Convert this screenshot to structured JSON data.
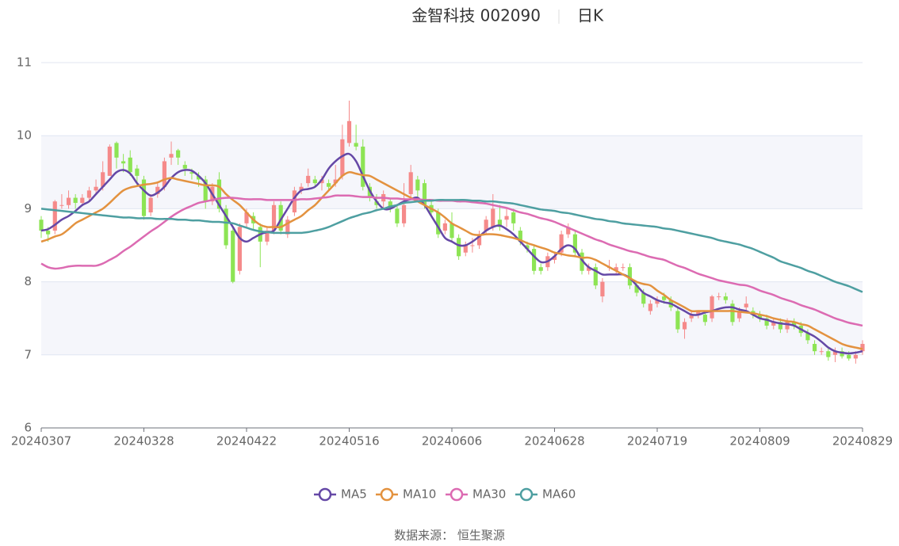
{
  "chart_data": {
    "type": "candlestick",
    "title": "金智科技 002090",
    "subtitle": "日K",
    "source": "数据来源： 恒生聚源",
    "ylim": [
      6,
      11
    ],
    "yticks": [
      6,
      7,
      8,
      9,
      10,
      11
    ],
    "grid": true,
    "legend": "bottom",
    "up_color": "#f58a8a",
    "down_color": "#8de454",
    "categories": [
      "20240307",
      null,
      null,
      null,
      null,
      null,
      null,
      null,
      null,
      null,
      null,
      null,
      null,
      null,
      null,
      "20240328",
      null,
      null,
      null,
      null,
      null,
      null,
      null,
      null,
      null,
      null,
      null,
      null,
      null,
      null,
      "20240422",
      null,
      null,
      null,
      null,
      null,
      null,
      null,
      null,
      null,
      null,
      null,
      null,
      null,
      null,
      "20240516",
      null,
      null,
      null,
      null,
      null,
      null,
      null,
      null,
      null,
      null,
      null,
      null,
      null,
      null,
      "20240606",
      null,
      null,
      null,
      null,
      null,
      null,
      null,
      null,
      null,
      null,
      null,
      null,
      null,
      null,
      "20240628",
      null,
      null,
      null,
      null,
      null,
      null,
      null,
      null,
      null,
      null,
      null,
      null,
      null,
      null,
      "20240719",
      null,
      null,
      null,
      null,
      null,
      null,
      null,
      null,
      null,
      null,
      null,
      null,
      null,
      null,
      "20240809",
      null,
      null,
      null,
      null,
      null,
      null,
      null,
      null,
      null,
      null,
      null,
      null,
      null,
      null,
      "20240829"
    ],
    "ohlc": [
      [
        8.85,
        8.7,
        8.6,
        8.9
      ],
      [
        8.7,
        8.65,
        8.55,
        8.75
      ],
      [
        8.7,
        9.1,
        8.65,
        9.12
      ],
      [
        9.05,
        9.05,
        9.0,
        9.2
      ],
      [
        9.05,
        9.15,
        9.0,
        9.25
      ],
      [
        9.15,
        9.08,
        9.0,
        9.2
      ],
      [
        9.08,
        9.15,
        9.05,
        9.2
      ],
      [
        9.15,
        9.25,
        9.1,
        9.3
      ],
      [
        9.25,
        9.3,
        9.2,
        9.4
      ],
      [
        9.3,
        9.5,
        9.25,
        9.65
      ],
      [
        9.45,
        9.85,
        9.45,
        9.88
      ],
      [
        9.9,
        9.7,
        9.55,
        9.92
      ],
      [
        9.65,
        9.62,
        9.5,
        9.75
      ],
      [
        9.7,
        9.5,
        9.45,
        9.8
      ],
      [
        9.55,
        9.45,
        9.3,
        9.6
      ],
      [
        9.4,
        8.9,
        8.85,
        9.45
      ],
      [
        8.95,
        9.15,
        8.9,
        9.2
      ],
      [
        9.2,
        9.3,
        9.15,
        9.35
      ],
      [
        9.3,
        9.65,
        9.25,
        9.7
      ],
      [
        9.7,
        9.75,
        9.6,
        9.92
      ],
      [
        9.8,
        9.7,
        9.6,
        9.82
      ],
      [
        9.6,
        9.55,
        9.45,
        9.65
      ],
      [
        9.5,
        9.48,
        9.4,
        9.55
      ],
      [
        9.45,
        9.4,
        9.3,
        9.5
      ],
      [
        9.4,
        9.1,
        9.0,
        9.45
      ],
      [
        9.1,
        9.3,
        9.05,
        9.35
      ],
      [
        9.4,
        9.0,
        8.95,
        9.5
      ],
      [
        9.0,
        8.5,
        8.45,
        9.05
      ],
      [
        8.7,
        8.0,
        7.98,
        8.75
      ],
      [
        8.15,
        8.75,
        8.1,
        8.8
      ],
      [
        8.8,
        8.95,
        8.75,
        9.0
      ],
      [
        8.9,
        8.8,
        8.7,
        8.95
      ],
      [
        8.75,
        8.55,
        8.2,
        8.8
      ],
      [
        8.55,
        8.7,
        8.5,
        8.75
      ],
      [
        8.7,
        9.05,
        8.65,
        9.1
      ],
      [
        9.05,
        8.7,
        8.65,
        9.1
      ],
      [
        8.65,
        8.85,
        8.6,
        8.9
      ],
      [
        8.95,
        9.25,
        8.9,
        9.3
      ],
      [
        9.25,
        9.3,
        9.2,
        9.35
      ],
      [
        9.35,
        9.45,
        9.3,
        9.55
      ],
      [
        9.4,
        9.35,
        9.3,
        9.45
      ],
      [
        9.35,
        9.4,
        9.25,
        9.45
      ],
      [
        9.35,
        9.3,
        9.25,
        9.4
      ],
      [
        9.35,
        9.4,
        9.3,
        9.6
      ],
      [
        9.45,
        9.95,
        9.4,
        10.15
      ],
      [
        9.9,
        10.2,
        9.85,
        10.48
      ],
      [
        9.9,
        9.85,
        9.8,
        10.15
      ],
      [
        9.85,
        9.3,
        9.25,
        9.95
      ],
      [
        9.3,
        9.15,
        9.1,
        9.35
      ],
      [
        9.1,
        9.05,
        9.0,
        9.2
      ],
      [
        9.1,
        9.2,
        9.0,
        9.25
      ],
      [
        9.1,
        9.0,
        8.95,
        9.15
      ],
      [
        9.0,
        8.8,
        8.75,
        9.05
      ],
      [
        8.8,
        9.05,
        8.75,
        9.35
      ],
      [
        9.2,
        9.5,
        9.15,
        9.6
      ],
      [
        9.4,
        9.25,
        9.1,
        9.45
      ],
      [
        9.35,
        9.05,
        9.0,
        9.4
      ],
      [
        9.05,
        8.95,
        8.9,
        9.1
      ],
      [
        8.95,
        8.65,
        8.6,
        9.0
      ],
      [
        8.7,
        8.8,
        8.65,
        8.85
      ],
      [
        8.8,
        8.6,
        8.55,
        8.95
      ],
      [
        8.6,
        8.35,
        8.3,
        8.65
      ],
      [
        8.4,
        8.5,
        8.35,
        8.55
      ],
      [
        8.5,
        8.5,
        8.4,
        8.6
      ],
      [
        8.5,
        8.65,
        8.45,
        8.7
      ],
      [
        8.7,
        8.85,
        8.65,
        8.9
      ],
      [
        8.75,
        9.0,
        8.7,
        9.2
      ],
      [
        8.85,
        8.75,
        8.7,
        9.05
      ],
      [
        8.85,
        8.9,
        8.75,
        9.0
      ],
      [
        8.95,
        8.8,
        8.7,
        9.0
      ],
      [
        8.7,
        8.55,
        8.5,
        8.75
      ],
      [
        8.5,
        8.45,
        8.4,
        8.55
      ],
      [
        8.45,
        8.15,
        8.1,
        8.5
      ],
      [
        8.2,
        8.15,
        8.1,
        8.25
      ],
      [
        8.2,
        8.35,
        8.15,
        8.4
      ],
      [
        8.3,
        8.35,
        8.25,
        8.4
      ],
      [
        8.4,
        8.65,
        8.35,
        8.7
      ],
      [
        8.65,
        8.75,
        8.6,
        8.8
      ],
      [
        8.65,
        8.4,
        8.35,
        8.7
      ],
      [
        8.4,
        8.15,
        8.1,
        8.45
      ],
      [
        8.15,
        8.2,
        8.1,
        8.25
      ],
      [
        8.2,
        7.95,
        7.9,
        8.25
      ],
      [
        7.8,
        8.0,
        7.72,
        8.05
      ],
      [
        8.2,
        8.2,
        8.15,
        8.3
      ],
      [
        8.15,
        8.2,
        8.1,
        8.25
      ],
      [
        8.2,
        8.2,
        8.15,
        8.25
      ],
      [
        8.2,
        7.95,
        7.9,
        8.25
      ],
      [
        7.95,
        7.85,
        7.8,
        8.0
      ],
      [
        7.85,
        7.7,
        7.65,
        7.9
      ],
      [
        7.6,
        7.7,
        7.55,
        7.75
      ],
      [
        7.7,
        7.75,
        7.65,
        7.8
      ],
      [
        7.8,
        7.75,
        7.7,
        7.85
      ],
      [
        7.75,
        7.65,
        7.6,
        7.8
      ],
      [
        7.6,
        7.35,
        7.3,
        7.65
      ],
      [
        7.35,
        7.45,
        7.22,
        7.5
      ],
      [
        7.5,
        7.55,
        7.45,
        7.6
      ],
      [
        7.55,
        7.6,
        7.5,
        7.6
      ],
      [
        7.55,
        7.45,
        7.4,
        7.6
      ],
      [
        7.5,
        7.8,
        7.45,
        7.82
      ],
      [
        7.8,
        7.8,
        7.75,
        7.85
      ],
      [
        7.8,
        7.75,
        7.7,
        7.85
      ],
      [
        7.7,
        7.45,
        7.4,
        7.75
      ],
      [
        7.5,
        7.6,
        7.45,
        7.65
      ],
      [
        7.65,
        7.7,
        7.6,
        7.8
      ],
      [
        7.6,
        7.55,
        7.5,
        7.65
      ],
      [
        7.55,
        7.5,
        7.45,
        7.6
      ],
      [
        7.5,
        7.4,
        7.35,
        7.55
      ],
      [
        7.4,
        7.45,
        7.35,
        7.5
      ],
      [
        7.45,
        7.35,
        7.3,
        7.5
      ],
      [
        7.35,
        7.45,
        7.3,
        7.5
      ],
      [
        7.45,
        7.4,
        7.35,
        7.5
      ],
      [
        7.4,
        7.3,
        7.25,
        7.45
      ],
      [
        7.3,
        7.2,
        7.15,
        7.35
      ],
      [
        7.15,
        7.05,
        7.0,
        7.2
      ],
      [
        7.05,
        7.05,
        7.0,
        7.1
      ],
      [
        7.05,
        6.97,
        6.92,
        7.1
      ],
      [
        7.0,
        7.05,
        6.9,
        7.1
      ],
      [
        7.05,
        6.98,
        6.95,
        7.1
      ],
      [
        7.0,
        6.95,
        6.92,
        7.05
      ],
      [
        6.95,
        7.0,
        6.88,
        7.05
      ],
      [
        7.05,
        7.15,
        7.0,
        7.2
      ]
    ],
    "series": [
      {
        "name": "MA5",
        "color": "#6548a6",
        "values": [
          8.7,
          8.72,
          8.78,
          8.85,
          8.9,
          8.97,
          9.05,
          9.1,
          9.2,
          9.3,
          9.4,
          9.5,
          9.53,
          9.48,
          9.35,
          9.25,
          9.18,
          9.22,
          9.3,
          9.42,
          9.5,
          9.53,
          9.52,
          9.45,
          9.35,
          9.2,
          9.05,
          8.9,
          8.75,
          8.6,
          8.55,
          8.6,
          8.65,
          8.68,
          8.7,
          8.85,
          9.0,
          9.15,
          9.25,
          9.27,
          9.3,
          9.4,
          9.55,
          9.65,
          9.72,
          9.75,
          9.65,
          9.45,
          9.25,
          9.1,
          9.0,
          9.0,
          9.05,
          9.1,
          9.13,
          9.15,
          9.05,
          8.9,
          8.75,
          8.6,
          8.55,
          8.5,
          8.5,
          8.55,
          8.62,
          8.7,
          8.75,
          8.77,
          8.72,
          8.65,
          8.55,
          8.45,
          8.35,
          8.27,
          8.28,
          8.35,
          8.45,
          8.5,
          8.45,
          8.3,
          8.2,
          8.15,
          8.1,
          8.1,
          8.1,
          8.1,
          8.05,
          7.95,
          7.85,
          7.8,
          7.75,
          7.72,
          7.7,
          7.65,
          7.6,
          7.55,
          7.55,
          7.58,
          7.6,
          7.63,
          7.65,
          7.65,
          7.62,
          7.6,
          7.55,
          7.5,
          7.48,
          7.45,
          7.43,
          7.42,
          7.4,
          7.35,
          7.3,
          7.25,
          7.18,
          7.1,
          7.05,
          7.03,
          7.02,
          7.03,
          7.05
        ]
      },
      {
        "name": "MA10",
        "color": "#e3923f",
        "values": [
          8.55,
          8.58,
          8.62,
          8.65,
          8.72,
          8.8,
          8.85,
          8.9,
          8.95,
          9.0,
          9.08,
          9.17,
          9.25,
          9.29,
          9.31,
          9.33,
          9.34,
          9.36,
          9.4,
          9.42,
          9.4,
          9.38,
          9.36,
          9.34,
          9.32,
          9.32,
          9.3,
          9.2,
          9.12,
          9.05,
          8.95,
          8.85,
          8.78,
          8.75,
          8.75,
          8.75,
          8.8,
          8.85,
          8.9,
          8.98,
          9.05,
          9.15,
          9.25,
          9.35,
          9.45,
          9.5,
          9.48,
          9.46,
          9.45,
          9.4,
          9.35,
          9.3,
          9.25,
          9.2,
          9.15,
          9.1,
          9.05,
          9.0,
          8.95,
          8.88,
          8.8,
          8.75,
          8.7,
          8.65,
          8.64,
          8.65,
          8.65,
          8.64,
          8.62,
          8.6,
          8.57,
          8.53,
          8.5,
          8.47,
          8.44,
          8.4,
          8.38,
          8.36,
          8.35,
          8.33,
          8.33,
          8.3,
          8.25,
          8.2,
          8.15,
          8.1,
          8.05,
          8.0,
          7.97,
          7.95,
          7.88,
          7.82,
          7.75,
          7.7,
          7.65,
          7.6,
          7.6,
          7.6,
          7.6,
          7.6,
          7.6,
          7.6,
          7.59,
          7.58,
          7.57,
          7.55,
          7.53,
          7.5,
          7.48,
          7.46,
          7.45,
          7.42,
          7.4,
          7.35,
          7.3,
          7.25,
          7.2,
          7.15,
          7.12,
          7.1,
          7.08
        ]
      },
      {
        "name": "MA30",
        "color": "#dc6bb2",
        "values": [
          8.25,
          8.2,
          8.18,
          8.19,
          8.21,
          8.22,
          8.22,
          8.22,
          8.22,
          8.25,
          8.3,
          8.35,
          8.42,
          8.48,
          8.55,
          8.62,
          8.69,
          8.75,
          8.82,
          8.89,
          8.95,
          9.0,
          9.04,
          9.08,
          9.1,
          9.12,
          9.14,
          9.15,
          9.15,
          9.14,
          9.13,
          9.13,
          9.13,
          9.12,
          9.12,
          9.12,
          9.12,
          9.12,
          9.13,
          9.13,
          9.14,
          9.15,
          9.16,
          9.18,
          9.18,
          9.18,
          9.17,
          9.16,
          9.16,
          9.15,
          9.15,
          9.14,
          9.14,
          9.13,
          9.13,
          9.13,
          9.12,
          9.12,
          9.11,
          9.11,
          9.11,
          9.1,
          9.1,
          9.09,
          9.08,
          9.07,
          9.05,
          9.03,
          9.01,
          8.98,
          8.95,
          8.93,
          8.9,
          8.87,
          8.85,
          8.82,
          8.78,
          8.74,
          8.7,
          8.66,
          8.62,
          8.58,
          8.55,
          8.51,
          8.48,
          8.45,
          8.42,
          8.4,
          8.37,
          8.34,
          8.32,
          8.3,
          8.26,
          8.22,
          8.19,
          8.15,
          8.11,
          8.08,
          8.05,
          8.02,
          8.0,
          7.98,
          7.96,
          7.95,
          7.92,
          7.88,
          7.85,
          7.82,
          7.78,
          7.75,
          7.72,
          7.68,
          7.65,
          7.62,
          7.58,
          7.54,
          7.5,
          7.47,
          7.44,
          7.42,
          7.4
        ]
      },
      {
        "name": "MA60",
        "color": "#4e9fa1",
        "values": [
          9.0,
          8.99,
          8.98,
          8.97,
          8.96,
          8.95,
          8.94,
          8.93,
          8.92,
          8.91,
          8.9,
          8.89,
          8.88,
          8.88,
          8.87,
          8.87,
          8.87,
          8.86,
          8.86,
          8.86,
          8.85,
          8.85,
          8.84,
          8.84,
          8.83,
          8.82,
          8.82,
          8.81,
          8.8,
          8.77,
          8.74,
          8.71,
          8.69,
          8.68,
          8.67,
          8.67,
          8.67,
          8.67,
          8.67,
          8.68,
          8.7,
          8.72,
          8.75,
          8.79,
          8.83,
          8.87,
          8.9,
          8.93,
          8.95,
          8.98,
          9.0,
          9.03,
          9.05,
          9.08,
          9.09,
          9.1,
          9.11,
          9.11,
          9.12,
          9.12,
          9.12,
          9.12,
          9.12,
          9.11,
          9.11,
          9.1,
          9.1,
          9.09,
          9.08,
          9.07,
          9.05,
          9.03,
          9.01,
          8.99,
          8.98,
          8.97,
          8.95,
          8.94,
          8.92,
          8.9,
          8.88,
          8.86,
          8.85,
          8.83,
          8.82,
          8.8,
          8.79,
          8.78,
          8.77,
          8.76,
          8.75,
          8.73,
          8.72,
          8.7,
          8.68,
          8.66,
          8.64,
          8.62,
          8.6,
          8.57,
          8.55,
          8.53,
          8.51,
          8.48,
          8.45,
          8.41,
          8.37,
          8.33,
          8.28,
          8.25,
          8.22,
          8.19,
          8.15,
          8.12,
          8.08,
          8.04,
          8.0,
          7.97,
          7.94,
          7.9,
          7.86
        ]
      }
    ]
  }
}
